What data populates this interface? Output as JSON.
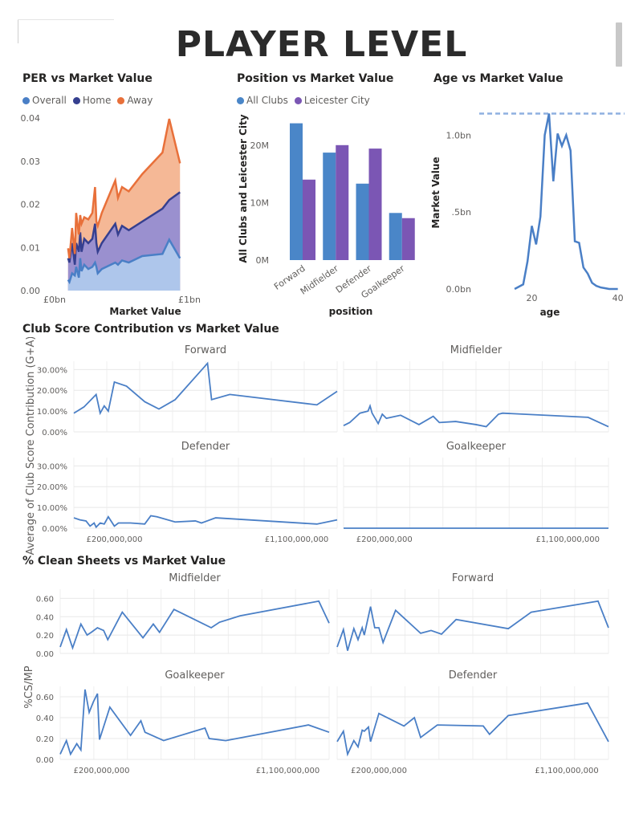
{
  "page": {
    "title": "PLAYER LEVEL"
  },
  "colors": {
    "overall": "#4a7fc6",
    "home": "#353f8f",
    "away": "#e8703a",
    "all_clubs": "#4a86c8",
    "leicester": "#7b56b4",
    "line": "#4a7fc6"
  },
  "chart_data": [
    {
      "id": "per",
      "type": "area",
      "title": "PER vs Market Value",
      "xlabel": "Market Value",
      "ylabel": "",
      "legend": "top-left",
      "grid": false,
      "xlim": [
        0,
        1.3
      ],
      "ylim": [
        0,
        0.04
      ],
      "x_ticks": [
        {
          "v": 0,
          "label": "£0bn"
        },
        {
          "v": 1.0,
          "label": "£1bn"
        }
      ],
      "y_ticks": [
        {
          "v": 0,
          "label": "0.00"
        },
        {
          "v": 0.01,
          "label": "0.01"
        },
        {
          "v": 0.02,
          "label": "0.02"
        },
        {
          "v": 0.03,
          "label": "0.03"
        },
        {
          "v": 0.04,
          "label": "0.04"
        }
      ],
      "x": [
        0.1,
        0.11,
        0.13,
        0.15,
        0.16,
        0.18,
        0.19,
        0.2,
        0.22,
        0.25,
        0.28,
        0.3,
        0.31,
        0.32,
        0.35,
        0.45,
        0.47,
        0.5,
        0.55,
        0.65,
        0.8,
        0.85,
        0.93
      ],
      "series": [
        {
          "name": "Overall",
          "values": [
            0.0025,
            0.002,
            0.004,
            0.0035,
            0.0055,
            0.003,
            0.0075,
            0.0045,
            0.006,
            0.005,
            0.0055,
            0.0065,
            0.0055,
            0.004,
            0.005,
            0.0065,
            0.006,
            0.007,
            0.0065,
            0.008,
            0.0085,
            0.0118,
            0.0075
          ]
        },
        {
          "name": "Home",
          "values": [
            0.0075,
            0.0065,
            0.011,
            0.006,
            0.011,
            0.009,
            0.0135,
            0.009,
            0.012,
            0.011,
            0.012,
            0.0155,
            0.011,
            0.009,
            0.011,
            0.0155,
            0.013,
            0.015,
            0.014,
            0.016,
            0.019,
            0.021,
            0.0228
          ]
        },
        {
          "name": "Away",
          "values": [
            0.0098,
            0.0075,
            0.0145,
            0.0085,
            0.018,
            0.013,
            0.0175,
            0.0155,
            0.017,
            0.0165,
            0.018,
            0.024,
            0.016,
            0.015,
            0.018,
            0.0255,
            0.0215,
            0.024,
            0.023,
            0.027,
            0.032,
            0.0398,
            0.0295
          ]
        }
      ]
    },
    {
      "id": "position",
      "type": "bar",
      "title": "Position vs Market Value",
      "xlabel": "position",
      "ylabel": "All Clubs and Leicester City",
      "legend": "top-left",
      "ylim": [
        0,
        25
      ],
      "y_ticks": [
        {
          "v": 0,
          "label": "0M"
        },
        {
          "v": 10,
          "label": "10M"
        },
        {
          "v": 20,
          "label": "20M"
        }
      ],
      "categories": [
        "Forward",
        "Midfielder",
        "Defender",
        "Goalkeeper"
      ],
      "series": [
        {
          "name": "All Clubs",
          "values": [
            23.8,
            18.7,
            13.3,
            8.2
          ]
        },
        {
          "name": "Leicester City",
          "values": [
            14.0,
            20.0,
            19.4,
            7.3
          ]
        }
      ]
    },
    {
      "id": "age",
      "type": "line",
      "title": "Age vs Market Value",
      "xlabel": "age",
      "ylabel": "Market Value",
      "xlim": [
        13,
        41
      ],
      "ylim": [
        0,
        1.2
      ],
      "x_ticks": [
        {
          "v": 20,
          "label": "20"
        },
        {
          "v": 40,
          "label": "40"
        }
      ],
      "y_ticks": [
        {
          "v": 0,
          "label": "0.0bn"
        },
        {
          "v": 0.5,
          "label": ".5bn"
        },
        {
          "v": 1.0,
          "label": "1.0bn"
        }
      ],
      "reference_line": 1.14,
      "x": [
        16,
        17,
        18,
        19,
        20,
        21,
        22,
        23,
        24,
        25,
        26,
        27,
        28,
        29,
        30,
        31,
        32,
        33,
        34,
        35,
        36,
        37,
        38,
        39,
        40
      ],
      "values": [
        0.0,
        0.015,
        0.03,
        0.18,
        0.41,
        0.29,
        0.47,
        1.0,
        1.14,
        0.7,
        1.01,
        0.93,
        1.0,
        0.9,
        0.31,
        0.3,
        0.14,
        0.1,
        0.04,
        0.02,
        0.01,
        0.005,
        0.0,
        0.0,
        0.0
      ]
    },
    {
      "id": "club_score",
      "type": "line",
      "title": "Club Score Contribution vs Market Value",
      "ylabel": "Average of Club Score Contribution (G+A)",
      "xlim": [
        0,
        1.3
      ],
      "ylim": [
        0,
        0.34
      ],
      "x_ticks": [
        {
          "v": 0.2,
          "label": "£200,000,000"
        },
        {
          "v": 1.1,
          "label": "£1,100,000,000"
        }
      ],
      "y_ticks": [
        {
          "v": 0,
          "label": "0.00%"
        },
        {
          "v": 0.1,
          "label": "10.00%"
        },
        {
          "v": 0.2,
          "label": "20.00%"
        },
        {
          "v": 0.3,
          "label": "30.00%"
        }
      ],
      "panels": [
        {
          "name": "Forward",
          "x": [
            0.0,
            0.05,
            0.09,
            0.11,
            0.13,
            0.15,
            0.17,
            0.2,
            0.26,
            0.35,
            0.42,
            0.5,
            0.66,
            0.68,
            0.77,
            1.2,
            1.3
          ],
          "values": [
            0.09,
            0.12,
            0.16,
            0.18,
            0.09,
            0.125,
            0.1,
            0.24,
            0.22,
            0.145,
            0.11,
            0.155,
            0.33,
            0.155,
            0.18,
            0.13,
            0.195
          ]
        },
        {
          "name": "Midfielder",
          "x": [
            0.0,
            0.03,
            0.08,
            0.12,
            0.13,
            0.14,
            0.17,
            0.19,
            0.21,
            0.28,
            0.37,
            0.44,
            0.47,
            0.55,
            0.65,
            0.7,
            0.76,
            0.78,
            1.2,
            1.3
          ],
          "values": [
            0.03,
            0.045,
            0.09,
            0.1,
            0.125,
            0.09,
            0.04,
            0.085,
            0.065,
            0.08,
            0.035,
            0.075,
            0.045,
            0.05,
            0.035,
            0.025,
            0.085,
            0.09,
            0.07,
            0.025
          ]
        },
        {
          "name": "Defender",
          "x": [
            0.0,
            0.03,
            0.06,
            0.08,
            0.1,
            0.11,
            0.13,
            0.15,
            0.17,
            0.2,
            0.22,
            0.28,
            0.35,
            0.38,
            0.41,
            0.5,
            0.6,
            0.63,
            0.7,
            1.2,
            1.3
          ],
          "values": [
            0.05,
            0.04,
            0.035,
            0.01,
            0.025,
            0.005,
            0.025,
            0.02,
            0.055,
            0.01,
            0.025,
            0.025,
            0.02,
            0.06,
            0.055,
            0.03,
            0.035,
            0.025,
            0.05,
            0.02,
            0.04
          ]
        },
        {
          "name": "Goalkeeper",
          "x": [
            0.0,
            1.3
          ],
          "values": [
            0.0,
            0.0
          ]
        }
      ]
    },
    {
      "id": "clean_sheets",
      "type": "line",
      "title": "% Clean Sheets vs Market Value",
      "ylabel": "%CS/MP",
      "xlim": [
        0,
        1.3
      ],
      "ylim": [
        0,
        0.7
      ],
      "x_ticks": [
        {
          "v": 0.2,
          "label": "£200,000,000"
        },
        {
          "v": 1.1,
          "label": "£1,100,000,000"
        }
      ],
      "y_ticks": [
        {
          "v": 0,
          "label": "0.00"
        },
        {
          "v": 0.2,
          "label": "0.20"
        },
        {
          "v": 0.4,
          "label": "0.40"
        },
        {
          "v": 0.6,
          "label": "0.60"
        }
      ],
      "panels": [
        {
          "name": "Midfielder",
          "x": [
            0.0,
            0.03,
            0.06,
            0.1,
            0.13,
            0.15,
            0.18,
            0.21,
            0.23,
            0.3,
            0.4,
            0.45,
            0.48,
            0.55,
            0.73,
            0.77,
            0.87,
            1.25,
            1.3
          ],
          "values": [
            0.07,
            0.26,
            0.06,
            0.32,
            0.2,
            0.23,
            0.28,
            0.25,
            0.15,
            0.45,
            0.17,
            0.32,
            0.23,
            0.48,
            0.28,
            0.34,
            0.41,
            0.57,
            0.33
          ]
        },
        {
          "name": "Forward",
          "x": [
            0.0,
            0.03,
            0.05,
            0.08,
            0.1,
            0.12,
            0.13,
            0.16,
            0.18,
            0.2,
            0.22,
            0.28,
            0.4,
            0.45,
            0.5,
            0.57,
            0.82,
            0.93,
            1.25,
            1.3
          ],
          "values": [
            0.07,
            0.26,
            0.03,
            0.27,
            0.15,
            0.28,
            0.2,
            0.51,
            0.28,
            0.28,
            0.12,
            0.47,
            0.22,
            0.25,
            0.21,
            0.37,
            0.27,
            0.45,
            0.57,
            0.28
          ]
        },
        {
          "name": "Goalkeeper",
          "x": [
            0.0,
            0.03,
            0.05,
            0.08,
            0.1,
            0.12,
            0.14,
            0.16,
            0.18,
            0.19,
            0.24,
            0.34,
            0.39,
            0.41,
            0.5,
            0.7,
            0.72,
            0.8,
            1.2,
            1.3
          ],
          "values": [
            0.05,
            0.18,
            0.05,
            0.15,
            0.09,
            0.67,
            0.45,
            0.55,
            0.63,
            0.19,
            0.5,
            0.23,
            0.37,
            0.26,
            0.18,
            0.3,
            0.2,
            0.18,
            0.33,
            0.26
          ]
        },
        {
          "name": "Defender",
          "x": [
            0.0,
            0.03,
            0.05,
            0.08,
            0.1,
            0.12,
            0.13,
            0.15,
            0.16,
            0.2,
            0.32,
            0.37,
            0.4,
            0.48,
            0.7,
            0.73,
            0.82,
            1.2,
            1.3
          ],
          "values": [
            0.17,
            0.27,
            0.05,
            0.18,
            0.12,
            0.28,
            0.27,
            0.31,
            0.17,
            0.44,
            0.32,
            0.4,
            0.21,
            0.33,
            0.32,
            0.24,
            0.42,
            0.54,
            0.17
          ]
        }
      ]
    }
  ]
}
